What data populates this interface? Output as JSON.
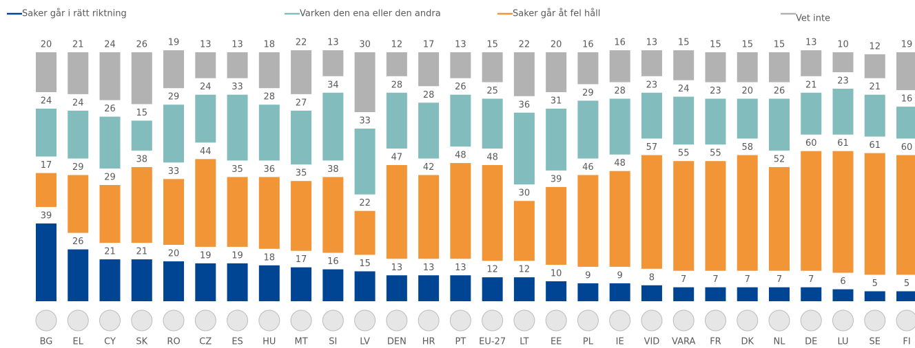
{
  "chart_data": {
    "type": "stacked-bar",
    "categories": [
      "BG",
      "EL",
      "CY",
      "SK",
      "RO",
      "CZ",
      "ES",
      "HU",
      "MT",
      "SI",
      "LV",
      "DEN",
      "HR",
      "PT",
      "EU-27",
      "LT",
      "EE",
      "PL",
      "IE",
      "VID",
      "VARA",
      "FR",
      "DK",
      "NL",
      "DE",
      "LU",
      "SE",
      "FI"
    ],
    "series": [
      {
        "name": "Saker går i rätt riktning",
        "color": "#004494",
        "values": [
          39,
          26,
          21,
          21,
          20,
          19,
          19,
          18,
          17,
          16,
          15,
          13,
          13,
          13,
          12,
          12,
          10,
          9,
          9,
          8,
          7,
          7,
          7,
          7,
          7,
          6,
          5,
          5
        ]
      },
      {
        "name": "Varken den ena eller den andra",
        "color": "#82bcbc",
        "values": [
          24,
          24,
          26,
          15,
          29,
          24,
          33,
          28,
          27,
          34,
          33,
          28,
          28,
          26,
          25,
          36,
          31,
          29,
          28,
          23,
          24,
          23,
          20,
          26,
          21,
          23,
          21,
          16
        ]
      },
      {
        "name": "Saker går åt fel håll",
        "color": "#f29536",
        "values": [
          17,
          29,
          29,
          38,
          33,
          44,
          35,
          36,
          35,
          38,
          22,
          47,
          42,
          48,
          48,
          30,
          39,
          46,
          48,
          57,
          55,
          55,
          58,
          52,
          60,
          61,
          61,
          60
        ]
      },
      {
        "name": "Vet inte",
        "color": "#b2b2b2",
        "values": [
          20,
          21,
          24,
          26,
          19,
          13,
          13,
          18,
          22,
          13,
          30,
          12,
          17,
          13,
          15,
          22,
          20,
          16,
          16,
          13,
          15,
          15,
          15,
          15,
          13,
          10,
          12,
          19
        ]
      }
    ]
  }
}
